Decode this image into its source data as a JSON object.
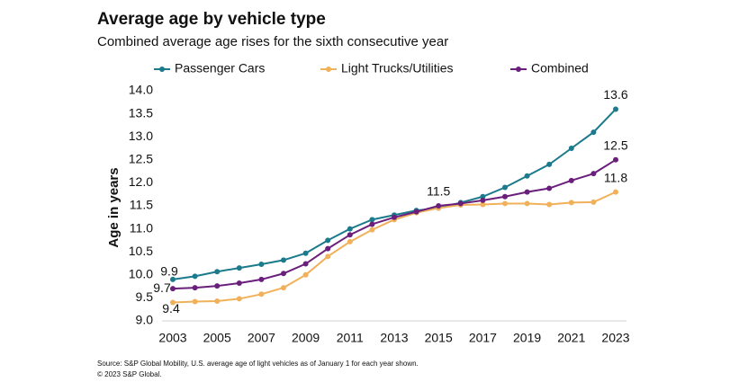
{
  "chart_data": {
    "type": "line",
    "title": "Average age by vehicle type",
    "subtitle": "Combined average age rises for the sixth consecutive year",
    "y_label": "Age in years",
    "x": [
      2003,
      2004,
      2005,
      2006,
      2007,
      2008,
      2009,
      2010,
      2011,
      2012,
      2013,
      2014,
      2015,
      2016,
      2017,
      2018,
      2019,
      2020,
      2021,
      2022,
      2023
    ],
    "xlim": [
      2003,
      2023
    ],
    "xticks": [
      2003,
      2005,
      2007,
      2009,
      2011,
      2013,
      2015,
      2017,
      2019,
      2021,
      2023
    ],
    "ylim": [
      9,
      14
    ],
    "yticks": [
      {
        "value": 9,
        "label": "9.0"
      },
      {
        "value": 9.5,
        "label": "9.5"
      },
      {
        "value": 10,
        "label": "10.0"
      },
      {
        "value": 10.5,
        "label": "10.5"
      },
      {
        "value": 11,
        "label": "11.0"
      },
      {
        "value": 11.5,
        "label": "11.5"
      },
      {
        "value": 12,
        "label": "12.0"
      },
      {
        "value": 12.5,
        "label": "12.5"
      },
      {
        "value": 13,
        "label": "13.0"
      },
      {
        "value": 13.5,
        "label": "13.5"
      },
      {
        "value": 14,
        "label": "14.0"
      }
    ],
    "grid": false,
    "legend": "top",
    "series": [
      {
        "name": "Passenger Cars",
        "color": "#1b7a8c",
        "labeled_points": [
          0,
          20
        ],
        "values": [
          9.9,
          9.97,
          10.07,
          10.15,
          10.23,
          10.32,
          10.47,
          10.75,
          11.0,
          11.2,
          11.3,
          11.4,
          11.45,
          11.57,
          11.7,
          11.9,
          12.15,
          12.4,
          12.75,
          13.1,
          13.6
        ]
      },
      {
        "name": "Light Trucks/Utilities",
        "color": "#f0b15a",
        "labeled_points": [
          0,
          20
        ],
        "values": [
          9.4,
          9.42,
          9.43,
          9.48,
          9.58,
          9.72,
          10.0,
          10.4,
          10.72,
          10.98,
          11.2,
          11.35,
          11.45,
          11.52,
          11.53,
          11.55,
          11.55,
          11.53,
          11.57,
          11.58,
          11.8
        ]
      },
      {
        "name": "Combined",
        "color": "#6b1f7c",
        "labeled_points": [
          0,
          12,
          20
        ],
        "values": [
          9.7,
          9.72,
          9.76,
          9.82,
          9.9,
          10.03,
          10.24,
          10.57,
          10.87,
          11.1,
          11.25,
          11.37,
          11.5,
          11.55,
          11.62,
          11.7,
          11.8,
          11.88,
          12.05,
          12.2,
          12.5
        ]
      }
    ],
    "source": "Source: S&P Global Mobility, U.S. average age of light vehicles as of January 1 for each year shown.",
    "copyright": "© 2023 S&P Global."
  }
}
